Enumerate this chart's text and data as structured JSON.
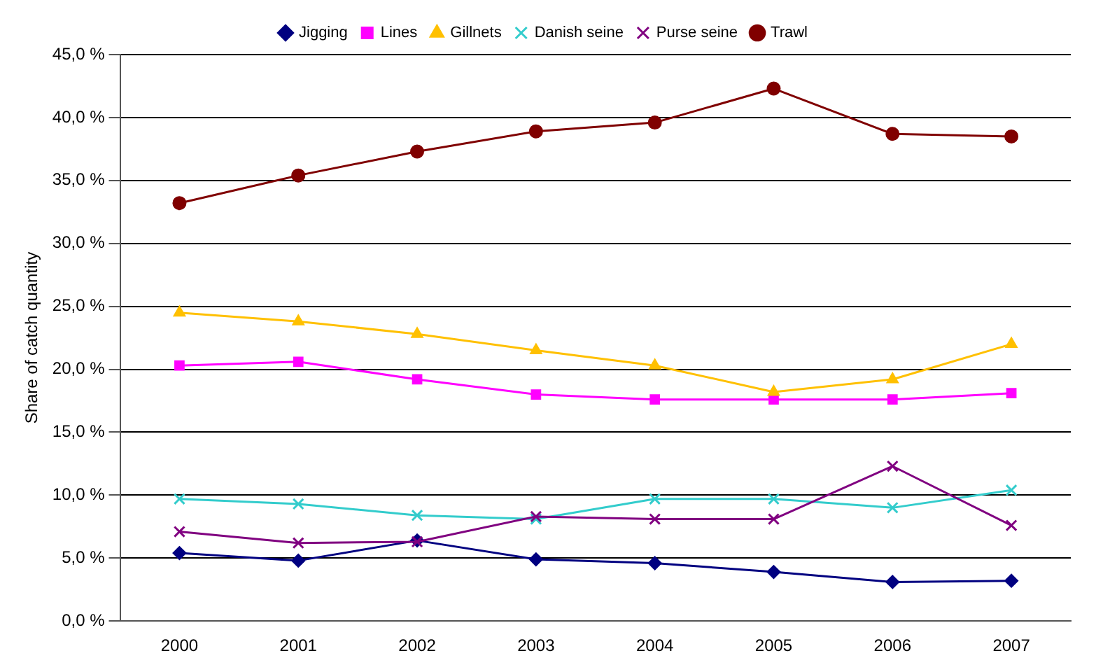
{
  "chart_data": {
    "type": "line",
    "ylabel": "Share of catch quantity",
    "categories": [
      "2000",
      "2001",
      "2002",
      "2003",
      "2004",
      "2005",
      "2006",
      "2007"
    ],
    "series": [
      {
        "name": "Jigging",
        "color": "#000080",
        "marker": "diamond",
        "values": [
          5.4,
          4.8,
          6.4,
          4.9,
          4.6,
          3.9,
          3.1,
          3.2
        ]
      },
      {
        "name": "Lines",
        "color": "#ff00ff",
        "marker": "square",
        "values": [
          20.3,
          20.6,
          19.2,
          18.0,
          17.6,
          17.6,
          17.6,
          18.1
        ]
      },
      {
        "name": "Gillnets",
        "color": "#ffc000",
        "marker": "triangle",
        "values": [
          24.5,
          23.8,
          22.8,
          21.5,
          20.3,
          18.2,
          19.2,
          22.0
        ]
      },
      {
        "name": "Danish seine",
        "color": "#33cccc",
        "marker": "cross",
        "values": [
          9.7,
          9.3,
          8.4,
          8.1,
          9.7,
          9.7,
          9.0,
          10.4
        ]
      },
      {
        "name": "Purse seine",
        "color": "#800080",
        "marker": "cross",
        "values": [
          7.1,
          6.2,
          6.3,
          8.3,
          8.1,
          8.1,
          12.3,
          7.6
        ]
      },
      {
        "name": "Trawl",
        "color": "#800000",
        "marker": "circle",
        "values": [
          33.2,
          35.4,
          37.3,
          38.9,
          39.6,
          42.3,
          38.7,
          38.5
        ]
      }
    ],
    "ylim": [
      0,
      45
    ],
    "yticks": [
      {
        "value": 0,
        "label": "0,0 %"
      },
      {
        "value": 5,
        "label": "5,0 %"
      },
      {
        "value": 10,
        "label": "10,0 %"
      },
      {
        "value": 15,
        "label": "15,0 %"
      },
      {
        "value": 20,
        "label": "20,0 %"
      },
      {
        "value": 25,
        "label": "25,0 %"
      },
      {
        "value": 30,
        "label": "30,0 %"
      },
      {
        "value": 35,
        "label": "35,0 %"
      },
      {
        "value": 40,
        "label": "40,0 %"
      },
      {
        "value": 45,
        "label": "45,0 %"
      }
    ],
    "grid": "y",
    "legend": "top",
    "line_style": "solid"
  }
}
